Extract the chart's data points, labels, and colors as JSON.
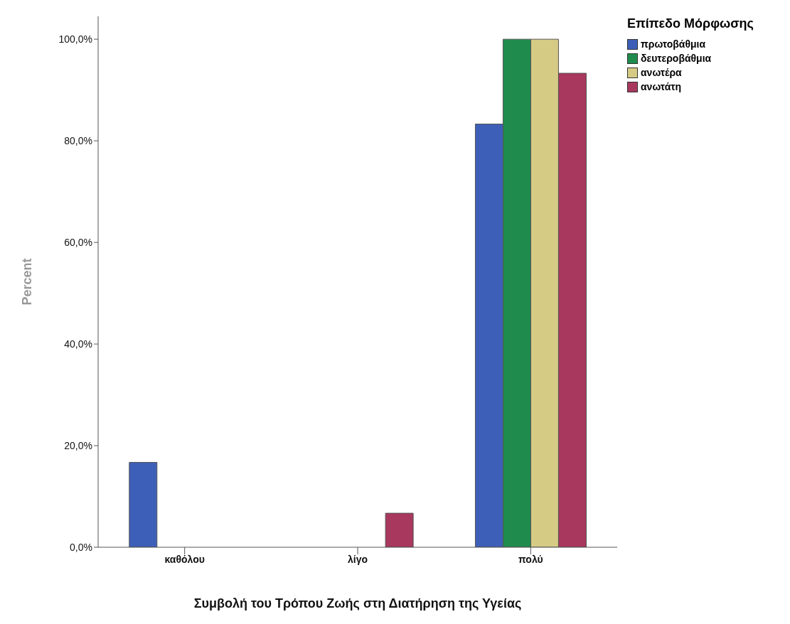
{
  "chart_data": {
    "type": "bar",
    "xlabel": "Συμβολή του Τρόπου Ζωής στη Διατήρηση της Υγείας",
    "ylabel": "Percent",
    "legend_title": "Επίπεδο Μόρφωσης",
    "categories": [
      "καθόλου",
      "λίγο",
      "πολύ"
    ],
    "series": [
      {
        "name": "πρωτοβάθμια",
        "color": "#3d5fb8",
        "values": [
          16.7,
          null,
          83.3
        ]
      },
      {
        "name": "δευτεροβάθμια",
        "color": "#1f8c4e",
        "values": [
          null,
          null,
          100
        ]
      },
      {
        "name": "ανωτέρα",
        "color": "#d6cb85",
        "values": [
          null,
          null,
          100
        ]
      },
      {
        "name": "ανωτάτη",
        "color": "#a8385e",
        "values": [
          null,
          6.7,
          93.3
        ]
      }
    ],
    "ylim": [
      0,
      104.5
    ],
    "yticks": [
      {
        "value": 0,
        "label": "0,0%"
      },
      {
        "value": 20,
        "label": "20,0%"
      },
      {
        "value": 40,
        "label": "40,0%"
      },
      {
        "value": 60,
        "label": "60,0%"
      },
      {
        "value": 80,
        "label": "80,0%"
      },
      {
        "value": 100,
        "label": "100,0%"
      }
    ],
    "legend": "top right"
  }
}
